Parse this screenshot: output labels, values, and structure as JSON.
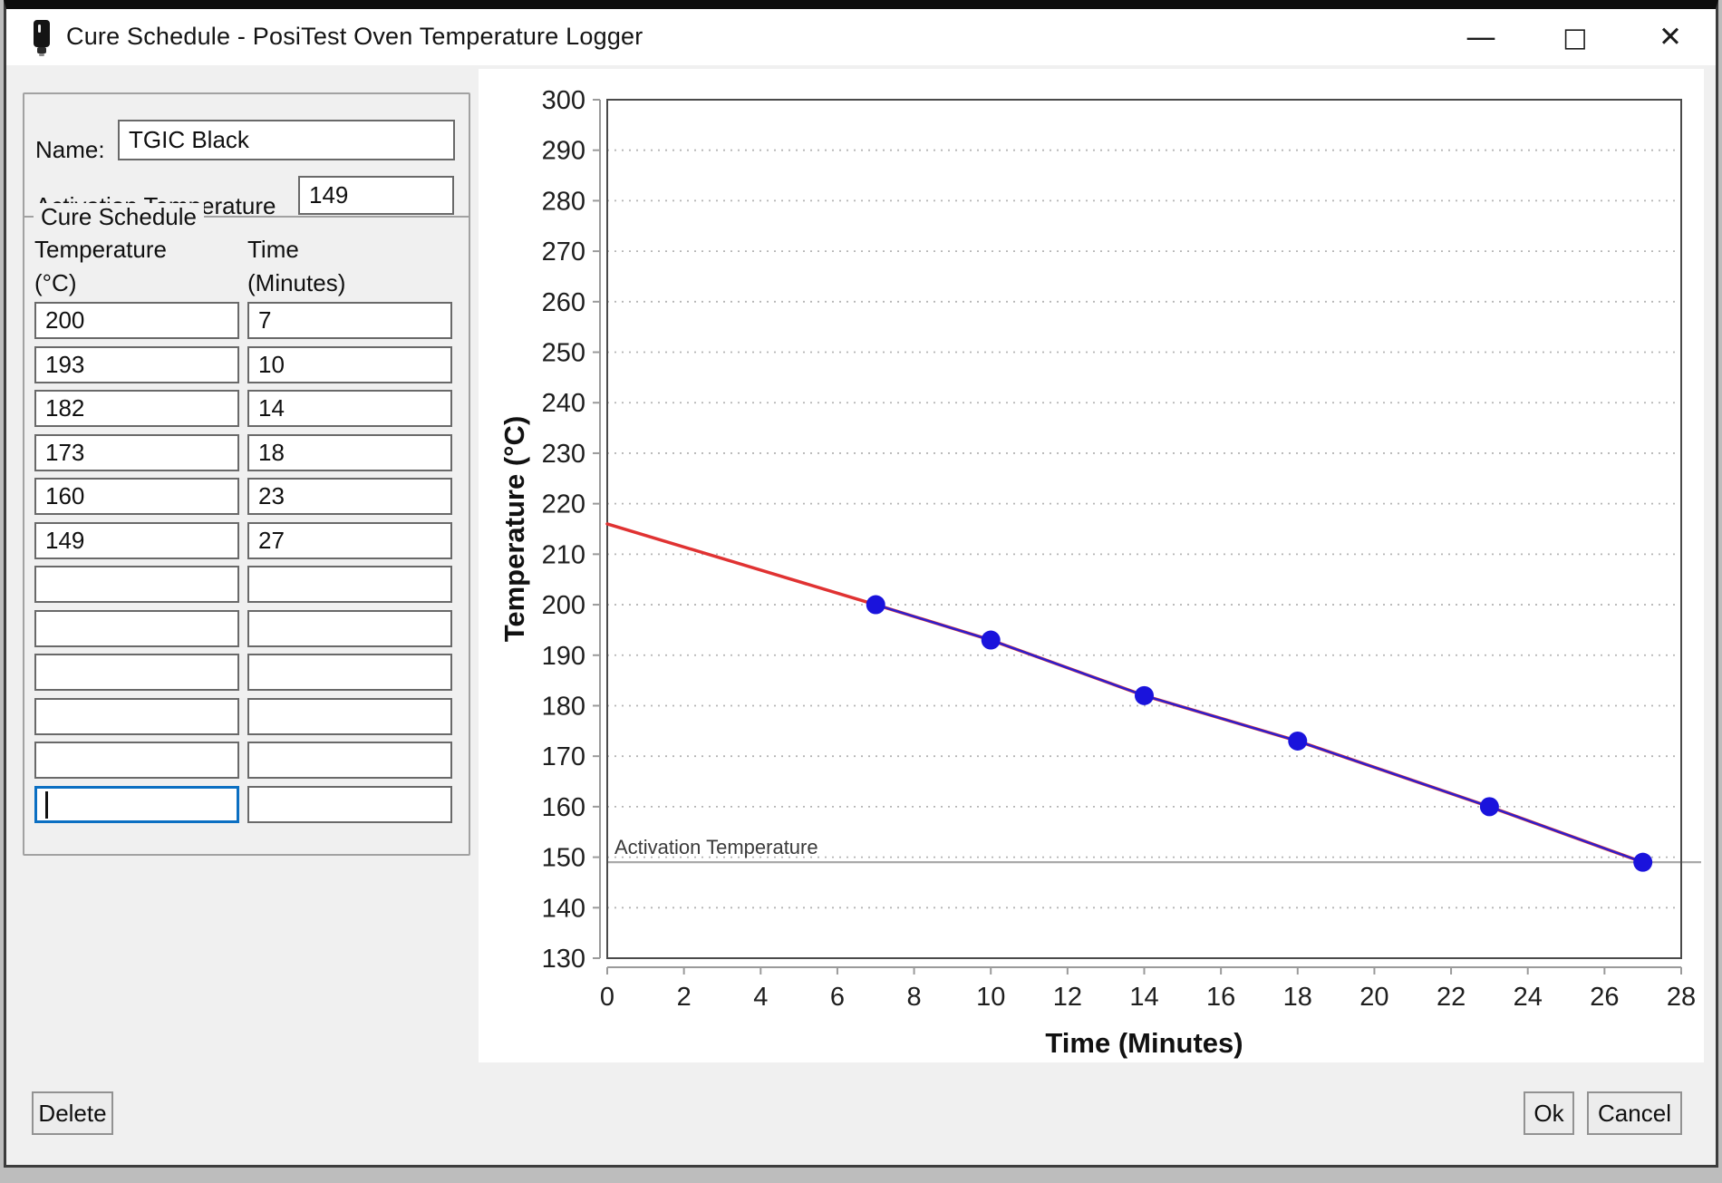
{
  "window": {
    "title": "Cure Schedule - PosiTest Oven Temperature Logger",
    "minimize_glyph": "—",
    "maximize_glyph": "□",
    "close_glyph": "✕"
  },
  "form": {
    "name_label": "Name:",
    "name_value": "TGIC Black",
    "activation_label": "Activation Temperature",
    "activation_value": "149"
  },
  "schedule": {
    "group_title": "Cure Schedule",
    "temperature_header_line1": "Temperature",
    "temperature_header_line2": "(°C)",
    "time_header_line1": "Time",
    "time_header_line2": "(Minutes)",
    "rows": [
      {
        "temperature": "200",
        "time": "7"
      },
      {
        "temperature": "193",
        "time": "10"
      },
      {
        "temperature": "182",
        "time": "14"
      },
      {
        "temperature": "173",
        "time": "18"
      },
      {
        "temperature": "160",
        "time": "23"
      },
      {
        "temperature": "149",
        "time": "27"
      },
      {
        "temperature": "",
        "time": ""
      },
      {
        "temperature": "",
        "time": ""
      },
      {
        "temperature": "",
        "time": ""
      },
      {
        "temperature": "",
        "time": ""
      },
      {
        "temperature": "",
        "time": ""
      },
      {
        "temperature": "",
        "time": ""
      }
    ],
    "focused_cell": {
      "row": 11,
      "column": "temperature"
    }
  },
  "buttons": {
    "delete": "Delete",
    "ok": "Ok",
    "cancel": "Cancel"
  },
  "chart_data": {
    "type": "line",
    "xlabel": "Time (Minutes)",
    "ylabel": "Temperature (°C)",
    "xlim": [
      0,
      28
    ],
    "xtick_step": 2,
    "ylim": [
      130,
      300
    ],
    "ytick_step": 10,
    "grid": "dotted-horizontal",
    "series": [
      {
        "name": "extrapolated-ramp",
        "color": "#e03232",
        "width": 3.5,
        "markers": false,
        "x": [
          0,
          7,
          10,
          14,
          18,
          23,
          27
        ],
        "y": [
          216,
          200,
          193,
          182,
          173,
          160,
          149
        ]
      },
      {
        "name": "cure-schedule",
        "color": "#2a1fd0",
        "width": 2.4,
        "markers": true,
        "marker_color": "#1a13dc",
        "marker_radius": 10.5,
        "x": [
          7,
          10,
          14,
          18,
          23,
          27
        ],
        "y": [
          200,
          193,
          182,
          173,
          160,
          149
        ]
      }
    ],
    "reference_line": {
      "label": "Activation Temperature",
      "y": 149,
      "color": "#a9a9a9"
    }
  }
}
